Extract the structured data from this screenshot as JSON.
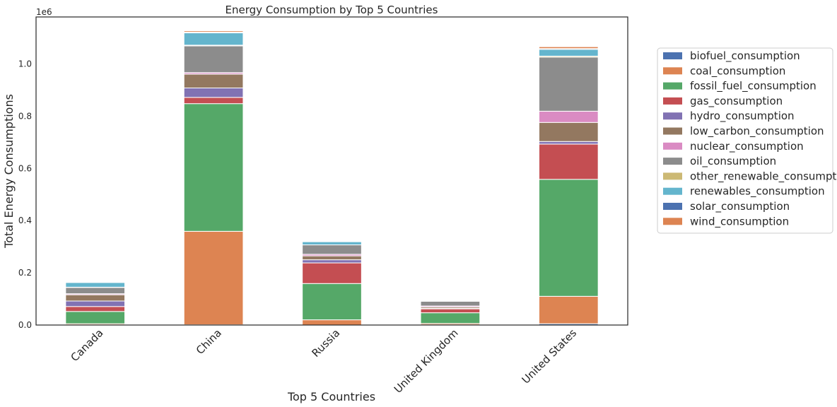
{
  "chart_data": {
    "type": "bar",
    "stacked": true,
    "title": "Energy Consumption by Top 5 Countries",
    "xlabel": "Top 5 Countries",
    "ylabel": "Total Energy Consumptions",
    "scale_label": "1e6",
    "ylim": [
      0,
      1180000
    ],
    "yticks": [
      0,
      200000,
      400000,
      600000,
      800000,
      1000000
    ],
    "ytick_labels": [
      "0.0",
      "0.2",
      "0.4",
      "0.6",
      "0.8",
      "1.0"
    ],
    "grid": false,
    "legend_position": "right",
    "categories": [
      "Canada",
      "China",
      "Russia",
      "United Kingdom",
      "United States"
    ],
    "series": [
      {
        "name": "biofuel_consumption",
        "color": "#4c72b0",
        "values": [
          1000,
          1000,
          0,
          1000,
          5000
        ]
      },
      {
        "name": "coal_consumption",
        "color": "#dd8452",
        "values": [
          4000,
          358000,
          20000,
          5000,
          105000
        ]
      },
      {
        "name": "fossil_fuel_consumption",
        "color": "#55a868",
        "values": [
          47000,
          489000,
          139000,
          41000,
          448000
        ]
      },
      {
        "name": "gas_consumption",
        "color": "#c44e52",
        "values": [
          19000,
          24000,
          79000,
          15000,
          135000
        ]
      },
      {
        "name": "hydro_consumption",
        "color": "#8172b3",
        "values": [
          21000,
          36000,
          12000,
          2000,
          10000
        ]
      },
      {
        "name": "low_carbon_consumption",
        "color": "#937860",
        "values": [
          24000,
          53000,
          15000,
          5000,
          73000
        ]
      },
      {
        "name": "nuclear_consumption",
        "color": "#da8bc3",
        "values": [
          4000,
          6000,
          6000,
          4000,
          43000
        ]
      },
      {
        "name": "oil_consumption",
        "color": "#8c8c8c",
        "values": [
          24000,
          102000,
          36000,
          18000,
          207000
        ]
      },
      {
        "name": "other_renewable_consumption",
        "color": "#ccb974",
        "values": [
          1000,
          3000,
          0,
          1000,
          4000
        ]
      },
      {
        "name": "renewables_consumption",
        "color": "#64b5cd",
        "values": [
          18000,
          47000,
          12000,
          3000,
          26000
        ]
      },
      {
        "name": "solar_consumption",
        "color": "#4c72b0",
        "values": [
          0,
          3000,
          0,
          1000,
          3000
        ]
      },
      {
        "name": "wind_consumption",
        "color": "#dd8452",
        "values": [
          2000,
          5000,
          0,
          2000,
          7000
        ]
      }
    ]
  }
}
